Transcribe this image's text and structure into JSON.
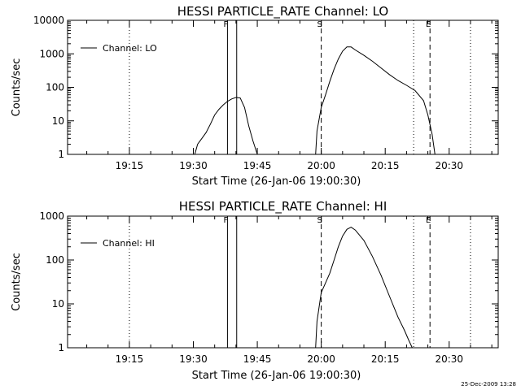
{
  "stamp": "25-Dec-2009 13:28",
  "chart_data": [
    {
      "type": "line",
      "title": "HESSI PARTICLE_RATE Channel: LO",
      "xlabel": "Start Time (26-Jan-06 19:00:30)",
      "ylabel": "Counts/sec",
      "yscale": "log",
      "ylim": [
        1,
        10000
      ],
      "xlim": [
        "19:00:30",
        "20:41:30"
      ],
      "yticks": [
        1,
        10,
        100,
        1000,
        10000
      ],
      "ytick_labels": [
        "1",
        "10",
        "100",
        "1000",
        "10000"
      ],
      "xticks": [
        "19:15",
        "19:30",
        "19:45",
        "20:00",
        "20:15",
        "20:30"
      ],
      "legend": {
        "label": "Channel: LO",
        "position": "upper-left"
      },
      "markers": [
        {
          "label": "F",
          "time": "19:38:00",
          "style": "solid"
        },
        {
          "label": "",
          "time": "19:40:10",
          "style": "solid"
        },
        {
          "label": "S",
          "time": "20:00:00",
          "style": "dashed"
        },
        {
          "label": "E",
          "time": "20:25:30",
          "style": "dashed"
        }
      ],
      "grid_lines": [
        {
          "time": "19:15:00",
          "style": "dotted"
        },
        {
          "time": "20:21:40",
          "style": "dotted"
        },
        {
          "time": "20:35:00",
          "style": "dotted"
        }
      ],
      "series": [
        {
          "name": "Channel: LO",
          "segments": [
            [
              [
                "19:30:20",
                1
              ],
              [
                "19:31:00",
                2
              ],
              [
                "19:32:00",
                3
              ],
              [
                "19:33:00",
                4.5
              ],
              [
                "19:34:00",
                8
              ],
              [
                "19:35:00",
                15
              ],
              [
                "19:36:00",
                22
              ],
              [
                "19:37:00",
                30
              ],
              [
                "19:38:00",
                38
              ],
              [
                "19:39:00",
                45
              ],
              [
                "19:40:00",
                50
              ],
              [
                "19:41:00",
                48
              ],
              [
                "19:42:00",
                25
              ],
              [
                "19:43:00",
                7
              ],
              [
                "19:44:00",
                2.5
              ],
              [
                "19:45:00",
                1
              ]
            ],
            [
              [
                "19:58:40",
                1
              ],
              [
                "19:59:00",
                5
              ],
              [
                "20:00:00",
                25
              ],
              [
                "20:01:00",
                60
              ],
              [
                "20:02:00",
                150
              ],
              [
                "20:03:00",
                350
              ],
              [
                "20:04:00",
                700
              ],
              [
                "20:05:00",
                1200
              ],
              [
                "20:06:00",
                1600
              ],
              [
                "20:07:00",
                1600
              ],
              [
                "20:08:00",
                1300
              ],
              [
                "20:10:00",
                900
              ],
              [
                "20:12:00",
                600
              ],
              [
                "20:14:00",
                380
              ],
              [
                "20:16:00",
                240
              ],
              [
                "20:18:00",
                160
              ],
              [
                "20:20:00",
                115
              ],
              [
                "20:22:00",
                80
              ],
              [
                "20:24:00",
                40
              ],
              [
                "20:25:00",
                15
              ],
              [
                "20:26:00",
                4
              ],
              [
                "20:26:40",
                1
              ]
            ]
          ]
        }
      ]
    },
    {
      "type": "line",
      "title": "HESSI PARTICLE_RATE Channel: HI",
      "xlabel": "Start Time (26-Jan-06 19:00:30)",
      "ylabel": "Counts/sec",
      "yscale": "log",
      "ylim": [
        1,
        1000
      ],
      "xlim": [
        "19:00:30",
        "20:41:30"
      ],
      "yticks": [
        1,
        10,
        100,
        1000
      ],
      "ytick_labels": [
        "1",
        "10",
        "100",
        "1000"
      ],
      "xticks": [
        "19:15",
        "19:30",
        "19:45",
        "20:00",
        "20:15",
        "20:30"
      ],
      "legend": {
        "label": "Channel: HI",
        "position": "upper-left"
      },
      "markers": [
        {
          "label": "F",
          "time": "19:38:00",
          "style": "solid"
        },
        {
          "label": "",
          "time": "19:40:10",
          "style": "solid"
        },
        {
          "label": "S",
          "time": "20:00:00",
          "style": "dashed"
        },
        {
          "label": "E",
          "time": "20:25:30",
          "style": "dashed"
        }
      ],
      "grid_lines": [
        {
          "time": "19:15:00",
          "style": "dotted"
        },
        {
          "time": "20:21:40",
          "style": "dotted"
        },
        {
          "time": "20:35:00",
          "style": "dotted"
        }
      ],
      "series": [
        {
          "name": "Channel: HI",
          "segments": [
            [
              [
                "19:58:40",
                1
              ],
              [
                "19:59:00",
                4
              ],
              [
                "20:00:00",
                18
              ],
              [
                "20:01:00",
                30
              ],
              [
                "20:02:00",
                50
              ],
              [
                "20:03:00",
                100
              ],
              [
                "20:04:00",
                200
              ],
              [
                "20:05:00",
                350
              ],
              [
                "20:06:00",
                500
              ],
              [
                "20:07:00",
                560
              ],
              [
                "20:08:00",
                480
              ],
              [
                "20:10:00",
                280
              ],
              [
                "20:12:00",
                120
              ],
              [
                "20:14:00",
                45
              ],
              [
                "20:16:00",
                15
              ],
              [
                "20:18:00",
                5
              ],
              [
                "20:19:30",
                2.5
              ],
              [
                "20:20:30",
                1.5
              ],
              [
                "20:21:20",
                1
              ]
            ]
          ]
        }
      ]
    }
  ]
}
